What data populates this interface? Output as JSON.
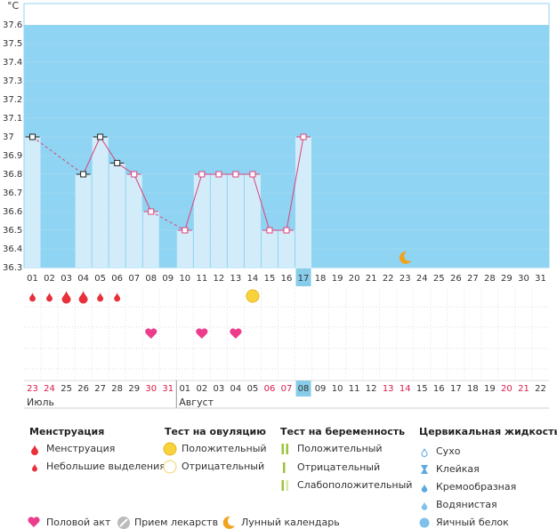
{
  "chart_data": {
    "type": "line",
    "y_unit": "°C",
    "categories": [
      "01",
      "02",
      "03",
      "04",
      "05",
      "06",
      "07",
      "08",
      "09",
      "10",
      "11",
      "12",
      "13",
      "14",
      "15",
      "16",
      "17",
      "18",
      "19",
      "20",
      "21",
      "22",
      "23",
      "24",
      "25",
      "26",
      "27",
      "28",
      "29",
      "30",
      "31"
    ],
    "values": [
      37.0,
      null,
      null,
      36.8,
      37.0,
      36.86,
      36.8,
      36.6,
      null,
      36.5,
      36.8,
      36.8,
      36.8,
      36.8,
      36.5,
      36.5,
      37.0,
      null,
      null,
      null,
      null,
      null,
      null,
      null,
      null,
      null,
      null,
      null,
      null,
      null,
      null
    ],
    "point_colors": [
      "#222",
      "",
      "",
      "#222",
      "#222",
      "#222",
      "#e0407a",
      "#e0407a",
      "",
      "#e0407a",
      "#e0407a",
      "#e0407a",
      "#e0407a",
      "#e0407a",
      "#e0407a",
      "#e0407a",
      "#e0407a",
      "",
      "",
      "",
      "",
      "",
      "",
      "",
      "",
      "",
      "",
      "",
      "",
      "",
      ""
    ],
    "line_color": "#e0407a",
    "bar_color": "#d2ecfa",
    "background_color": "#8fd4f2",
    "ylim": [
      36.3,
      37.7
    ],
    "yticks": [
      36.3,
      36.4,
      36.5,
      36.6,
      36.7,
      36.8,
      36.9,
      37,
      37.1,
      37.2,
      37.3,
      37.4,
      37.5,
      37.6
    ],
    "highlight_index": 16
  },
  "calendar": {
    "dates": [
      "23",
      "24",
      "25",
      "26",
      "27",
      "28",
      "29",
      "30",
      "31",
      "01",
      "02",
      "03",
      "04",
      "05",
      "06",
      "07",
      "08",
      "09",
      "10",
      "11",
      "12",
      "13",
      "14",
      "15",
      "16",
      "17",
      "18",
      "19",
      "20",
      "21",
      "22"
    ],
    "weekends": [
      0,
      1,
      7,
      8,
      14,
      15,
      21,
      22,
      28,
      29
    ],
    "months": [
      {
        "label": "Июль",
        "index": 0
      },
      {
        "label": "Август",
        "index": 9
      }
    ]
  },
  "marks": {
    "menstruation": [
      0,
      1,
      2,
      3,
      4,
      5
    ],
    "heavy": [
      2,
      3
    ],
    "ovulation_positive": [
      13
    ],
    "intercourse": [
      7,
      10,
      12
    ],
    "moon": [
      22
    ]
  },
  "legend": {
    "groups": [
      {
        "title": "Менструация",
        "items": [
          "Менструация",
          "Небольшие выделения"
        ]
      },
      {
        "title": "Тест на овуляцию",
        "items": [
          "Положительный",
          "Отрицательный"
        ]
      },
      {
        "title": "Тест на беременность",
        "items": [
          "Положительный",
          "Отрицательный",
          "Слабоположительный"
        ]
      },
      {
        "title": "Цервикальная жидкость",
        "items": [
          "Сухо",
          "Клейкая",
          "Кремообразная",
          "Водянистая",
          "Яичный белок"
        ]
      }
    ],
    "extras": [
      "Половой акт",
      "Прием лекарств",
      "Лунный календарь"
    ]
  }
}
